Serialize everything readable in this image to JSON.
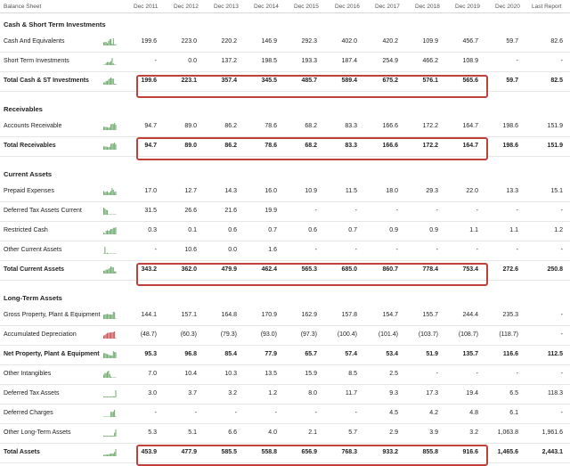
{
  "header": {
    "title": "Balance Sheet",
    "years": [
      "Dec 2011",
      "Dec 2012",
      "Dec 2013",
      "Dec 2014",
      "Dec 2015",
      "Dec 2016",
      "Dec 2017",
      "Dec 2018",
      "Dec 2019",
      "Dec 2020",
      "Last Report"
    ]
  },
  "colors": {
    "highlight": "#c0403a",
    "spark_green": "#6aa86a",
    "spark_red": "#c75050"
  },
  "rows": [
    {
      "type": "section",
      "label": "Cash & Short Term Investments"
    },
    {
      "label": "Cash And Equivalents",
      "spark": "green",
      "values": [
        "199.6",
        "223.0",
        "220.2",
        "146.9",
        "292.3",
        "402.0",
        "420.2",
        "109.9",
        "456.7",
        "59.7",
        "82.6"
      ]
    },
    {
      "label": "Short Term Investments",
      "spark": "green",
      "values": [
        "-",
        "0.0",
        "137.2",
        "198.5",
        "193.3",
        "187.4",
        "254.9",
        "466.2",
        "108.9",
        "-",
        "-"
      ]
    },
    {
      "label": "Total Cash & ST Investments",
      "bold": true,
      "spark": "green",
      "values": [
        "199.6",
        "223.1",
        "357.4",
        "345.5",
        "485.7",
        "589.4",
        "675.2",
        "576.1",
        "565.6",
        "59.7",
        "82.5"
      ]
    },
    {
      "type": "section",
      "label": "Receivables"
    },
    {
      "label": "Accounts Receivable",
      "spark": "green",
      "values": [
        "94.7",
        "89.0",
        "86.2",
        "78.6",
        "68.2",
        "83.3",
        "166.6",
        "172.2",
        "164.7",
        "198.6",
        "151.9"
      ]
    },
    {
      "label": "Total Receivables",
      "bold": true,
      "spark": "green",
      "values": [
        "94.7",
        "89.0",
        "86.2",
        "78.6",
        "68.2",
        "83.3",
        "166.6",
        "172.2",
        "164.7",
        "198.6",
        "151.9"
      ]
    },
    {
      "type": "section",
      "label": "Current Assets"
    },
    {
      "label": "Prepaid Expenses",
      "spark": "green",
      "values": [
        "17.0",
        "12.7",
        "14.3",
        "16.0",
        "10.9",
        "11.5",
        "18.0",
        "29.3",
        "22.0",
        "13.3",
        "15.1"
      ]
    },
    {
      "label": "Deferred Tax Assets Current",
      "spark": "green",
      "values": [
        "31.5",
        "26.6",
        "21.6",
        "19.9",
        "-",
        "-",
        "-",
        "-",
        "-",
        "-",
        "-"
      ]
    },
    {
      "label": "Restricted Cash",
      "spark": "green",
      "values": [
        "0.3",
        "0.1",
        "0.6",
        "0.7",
        "0.6",
        "0.7",
        "0.9",
        "0.9",
        "1.1",
        "1.1",
        "1.2"
      ]
    },
    {
      "label": "Other Current Assets",
      "spark": "green",
      "values": [
        "-",
        "10.6",
        "0.0",
        "1.6",
        "-",
        "-",
        "-",
        "-",
        "-",
        "-",
        "-"
      ]
    },
    {
      "label": "Total Current Assets",
      "bold": true,
      "spark": "green",
      "values": [
        "343.2",
        "362.0",
        "479.9",
        "462.4",
        "565.3",
        "685.0",
        "860.7",
        "778.4",
        "753.4",
        "272.6",
        "250.8"
      ]
    },
    {
      "type": "section",
      "label": "Long-Term Assets"
    },
    {
      "label": "Gross Property, Plant & Equipment",
      "spark": "green",
      "values": [
        "144.1",
        "157.1",
        "164.8",
        "170.9",
        "162.9",
        "157.8",
        "154.7",
        "155.7",
        "244.4",
        "235.3",
        "-"
      ]
    },
    {
      "label": "Accumulated Depreciation",
      "spark": "red",
      "values": [
        "(48.7)",
        "(60.3)",
        "(79.3)",
        "(93.0)",
        "(97.3)",
        "(100.4)",
        "(101.4)",
        "(103.7)",
        "(108.7)",
        "(118.7)",
        "-"
      ]
    },
    {
      "label": "Net Property, Plant & Equipment",
      "bold": true,
      "spark": "green",
      "values": [
        "95.3",
        "96.8",
        "85.4",
        "77.9",
        "65.7",
        "57.4",
        "53.4",
        "51.9",
        "135.7",
        "116.6",
        "112.5"
      ]
    },
    {
      "label": "Other Intangibles",
      "spark": "green",
      "values": [
        "7.0",
        "10.4",
        "10.3",
        "13.5",
        "15.9",
        "8.5",
        "2.5",
        "-",
        "-",
        "-",
        "-"
      ]
    },
    {
      "label": "Deferred Tax Assets",
      "spark": "green",
      "values": [
        "3.0",
        "3.7",
        "3.2",
        "1.2",
        "8.0",
        "11.7",
        "9.3",
        "17.3",
        "19.4",
        "6.5",
        "118.3"
      ]
    },
    {
      "label": "Deferred Charges",
      "spark": "green",
      "values": [
        "-",
        "-",
        "-",
        "-",
        "-",
        "-",
        "4.5",
        "4.2",
        "4.8",
        "6.1",
        "-"
      ]
    },
    {
      "label": "Other Long-Term Assets",
      "spark": "green",
      "values": [
        "5.3",
        "5.1",
        "6.6",
        "4.0",
        "2.1",
        "5.7",
        "2.9",
        "3.9",
        "3.2",
        "1,063.8",
        "1,961.6"
      ]
    },
    {
      "label": "Total Assets",
      "bold": true,
      "spark": "green",
      "values": [
        "453.9",
        "477.9",
        "585.5",
        "558.8",
        "656.9",
        "768.3",
        "933.2",
        "855.8",
        "916.6",
        "1,465.6",
        "2,443.1"
      ]
    }
  ]
}
